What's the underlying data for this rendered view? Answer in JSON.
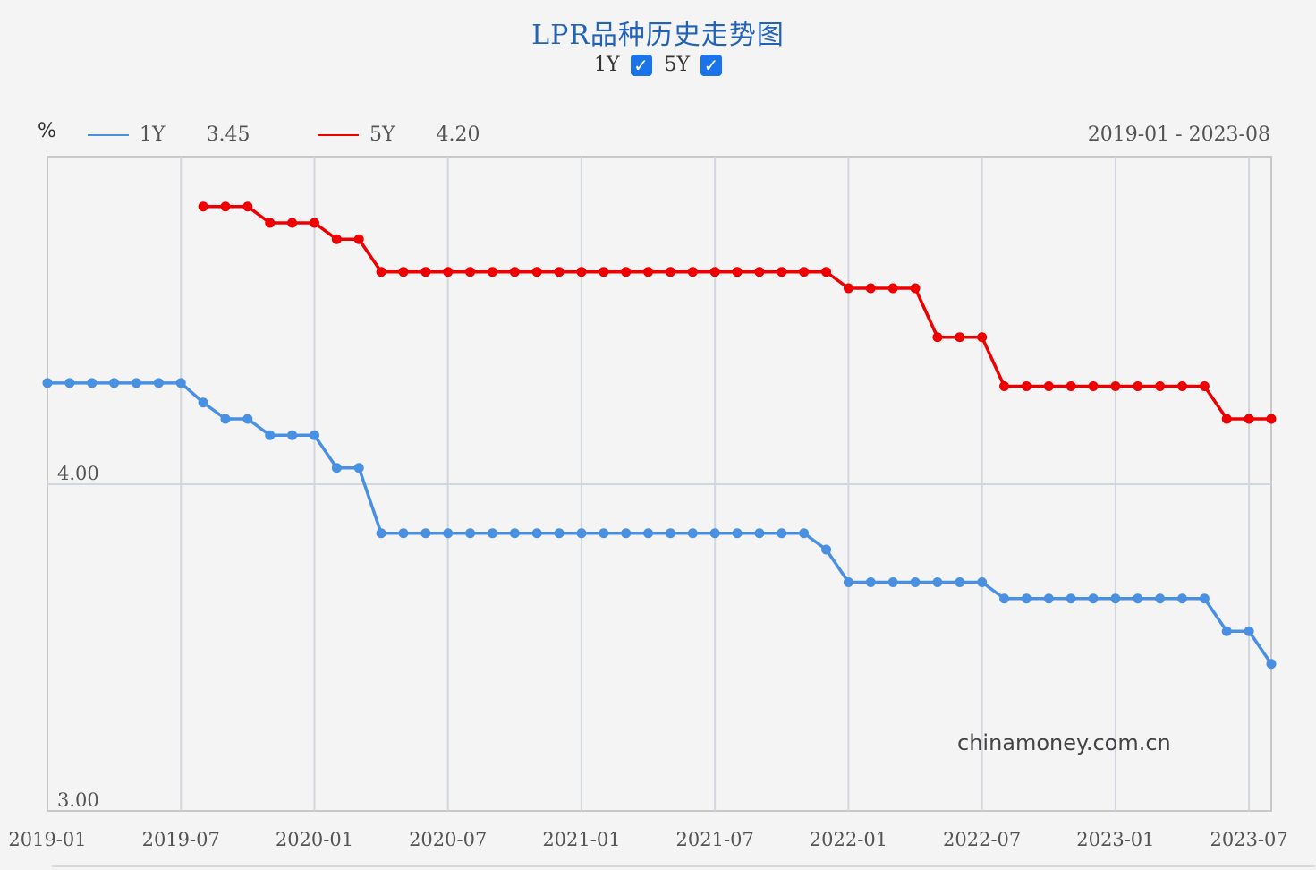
{
  "title": "LPR品种历史走势图",
  "toggles": [
    {
      "label": "1Y",
      "checked": true,
      "check": "✓"
    },
    {
      "label": "5Y",
      "checked": true,
      "check": "✓"
    }
  ],
  "legend": {
    "unit": "%",
    "items": [
      {
        "name": "1Y",
        "value": "3.45",
        "color": "#4a90e2"
      },
      {
        "name": "5Y",
        "value": "4.20",
        "color": "#ee0000"
      }
    ],
    "range": "2019-01 - 2023-08"
  },
  "watermark": "chinamoney.com.cn",
  "chart_data": {
    "type": "line",
    "xlabel": "",
    "ylabel": "",
    "ylim": [
      3.0,
      5.0
    ],
    "y_ticks": [
      {
        "value": 3.0,
        "label": "3.00"
      },
      {
        "value": 4.0,
        "label": "4.00"
      }
    ],
    "x_ticks": [
      "2019-01",
      "2019-07",
      "2020-01",
      "2020-07",
      "2021-01",
      "2021-07",
      "2022-01",
      "2022-07",
      "2023-01",
      "2023-07"
    ],
    "grid": true,
    "x_start": "2019-01",
    "x_end": "2023-08",
    "series": [
      {
        "name": "1Y",
        "color": "#4a90e2",
        "x": [
          "2019-01",
          "2019-02",
          "2019-03",
          "2019-04",
          "2019-05",
          "2019-06",
          "2019-07",
          "2019-08",
          "2019-09",
          "2019-10",
          "2019-11",
          "2019-12",
          "2020-01",
          "2020-02",
          "2020-03",
          "2020-04",
          "2020-05",
          "2020-06",
          "2020-07",
          "2020-08",
          "2020-09",
          "2020-10",
          "2020-11",
          "2020-12",
          "2021-01",
          "2021-02",
          "2021-03",
          "2021-04",
          "2021-05",
          "2021-06",
          "2021-07",
          "2021-08",
          "2021-09",
          "2021-10",
          "2021-11",
          "2021-12",
          "2022-01",
          "2022-02",
          "2022-03",
          "2022-04",
          "2022-05",
          "2022-06",
          "2022-07",
          "2022-08",
          "2022-09",
          "2022-10",
          "2022-11",
          "2022-12",
          "2023-01",
          "2023-02",
          "2023-03",
          "2023-04",
          "2023-05",
          "2023-06",
          "2023-07",
          "2023-08"
        ],
        "values": [
          4.31,
          4.31,
          4.31,
          4.31,
          4.31,
          4.31,
          4.31,
          4.25,
          4.2,
          4.2,
          4.15,
          4.15,
          4.15,
          4.05,
          4.05,
          3.85,
          3.85,
          3.85,
          3.85,
          3.85,
          3.85,
          3.85,
          3.85,
          3.85,
          3.85,
          3.85,
          3.85,
          3.85,
          3.85,
          3.85,
          3.85,
          3.85,
          3.85,
          3.85,
          3.85,
          3.8,
          3.7,
          3.7,
          3.7,
          3.7,
          3.7,
          3.7,
          3.7,
          3.65,
          3.65,
          3.65,
          3.65,
          3.65,
          3.65,
          3.65,
          3.65,
          3.65,
          3.65,
          3.55,
          3.55,
          3.45
        ]
      },
      {
        "name": "5Y",
        "color": "#ee0000",
        "x": [
          "2019-08",
          "2019-09",
          "2019-10",
          "2019-11",
          "2019-12",
          "2020-01",
          "2020-02",
          "2020-03",
          "2020-04",
          "2020-05",
          "2020-06",
          "2020-07",
          "2020-08",
          "2020-09",
          "2020-10",
          "2020-11",
          "2020-12",
          "2021-01",
          "2021-02",
          "2021-03",
          "2021-04",
          "2021-05",
          "2021-06",
          "2021-07",
          "2021-08",
          "2021-09",
          "2021-10",
          "2021-11",
          "2021-12",
          "2022-01",
          "2022-02",
          "2022-03",
          "2022-04",
          "2022-05",
          "2022-06",
          "2022-07",
          "2022-08",
          "2022-09",
          "2022-10",
          "2022-11",
          "2022-12",
          "2023-01",
          "2023-02",
          "2023-03",
          "2023-04",
          "2023-05",
          "2023-06",
          "2023-07",
          "2023-08"
        ],
        "values": [
          4.85,
          4.85,
          4.85,
          4.8,
          4.8,
          4.8,
          4.75,
          4.75,
          4.65,
          4.65,
          4.65,
          4.65,
          4.65,
          4.65,
          4.65,
          4.65,
          4.65,
          4.65,
          4.65,
          4.65,
          4.65,
          4.65,
          4.65,
          4.65,
          4.65,
          4.65,
          4.65,
          4.65,
          4.65,
          4.6,
          4.6,
          4.6,
          4.6,
          4.45,
          4.45,
          4.45,
          4.3,
          4.3,
          4.3,
          4.3,
          4.3,
          4.3,
          4.3,
          4.3,
          4.3,
          4.3,
          4.2,
          4.2,
          4.2
        ]
      }
    ]
  }
}
